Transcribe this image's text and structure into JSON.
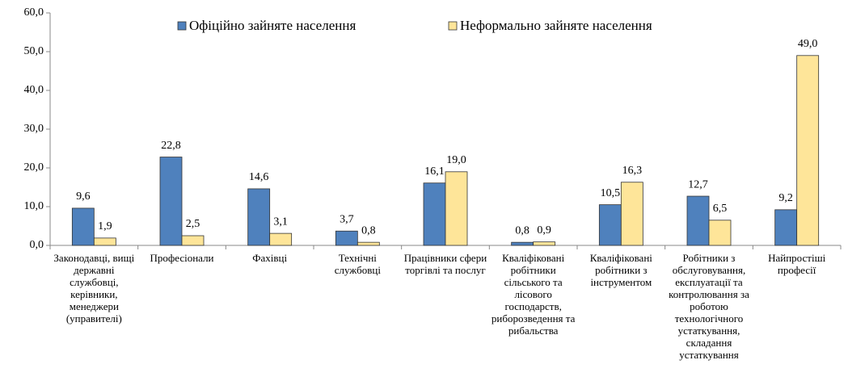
{
  "chart_data": {
    "type": "bar",
    "categories": [
      "Законодавці, вищі державні службовці, керівники, менеджери (управителі)",
      "Професіонали",
      "Фахівці",
      "Технічні службовці",
      "Працівники сфери торгівлі та послуг",
      "Кваліфіковані робітники сільського та лісового господарств, риборозведення та рибальства",
      "Кваліфіковані робітники з інструментом",
      "Робітники з обслуговування, експлуатації та контролювання за роботою технологічного устаткування, складання устаткування",
      "Найпростіші професії"
    ],
    "series": [
      {
        "name": "Офіційно зайняте населення",
        "color": "#4f81bd",
        "values": [
          9.6,
          22.8,
          14.6,
          3.7,
          16.1,
          0.8,
          10.5,
          12.7,
          9.2
        ],
        "value_labels": [
          "9,6",
          "22,8",
          "14,6",
          "3,7",
          "16,1",
          "0,8",
          "10,5",
          "12,7",
          "9,2"
        ]
      },
      {
        "name": "Неформально зайняте населення",
        "color": "#fee599",
        "values": [
          1.9,
          2.5,
          3.1,
          0.8,
          19.0,
          0.9,
          16.3,
          6.5,
          49.0
        ],
        "value_labels": [
          "1,9",
          "2,5",
          "3,1",
          "0,8",
          "19,0",
          "0,9",
          "16,3",
          "6,5",
          "49,0"
        ]
      }
    ],
    "ylim": [
      0,
      60
    ],
    "yticks": [
      {
        "value": 0,
        "label": "0,0"
      },
      {
        "value": 10,
        "label": "10,0"
      },
      {
        "value": 20,
        "label": "20,0"
      },
      {
        "value": 30,
        "label": "30,0"
      },
      {
        "value": 40,
        "label": "40,0"
      },
      {
        "value": 50,
        "label": "50,0"
      },
      {
        "value": 60,
        "label": "60,0"
      }
    ],
    "grid": false
  }
}
